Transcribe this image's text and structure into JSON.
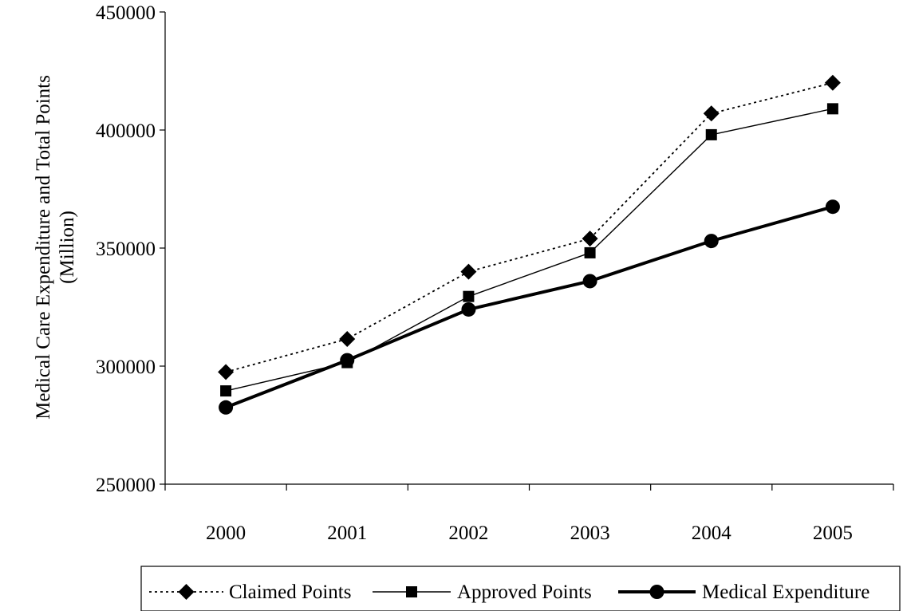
{
  "chart_data": {
    "type": "line",
    "categories": [
      "2000",
      "2001",
      "2002",
      "2003",
      "2004",
      "2005"
    ],
    "ylim": [
      250000,
      450000
    ],
    "yticks": [
      250000,
      300000,
      350000,
      400000,
      450000
    ],
    "ylabel_lines": [
      "Medical Care Expenditure and Total Points",
      "(Million)"
    ],
    "legend_position": "bottom",
    "series": [
      {
        "name": "Claimed Points",
        "values": [
          297500,
          311500,
          340000,
          354000,
          407000,
          420000
        ],
        "style": "dotted",
        "marker": "diamond"
      },
      {
        "name": "Approved Points",
        "values": [
          289500,
          301500,
          329500,
          348000,
          398000,
          409000
        ],
        "style": "thin",
        "marker": "square"
      },
      {
        "name": "Medical Expenditure",
        "values": [
          282500,
          302500,
          324000,
          336000,
          353000,
          367500
        ],
        "style": "thick",
        "marker": "circle"
      }
    ]
  }
}
